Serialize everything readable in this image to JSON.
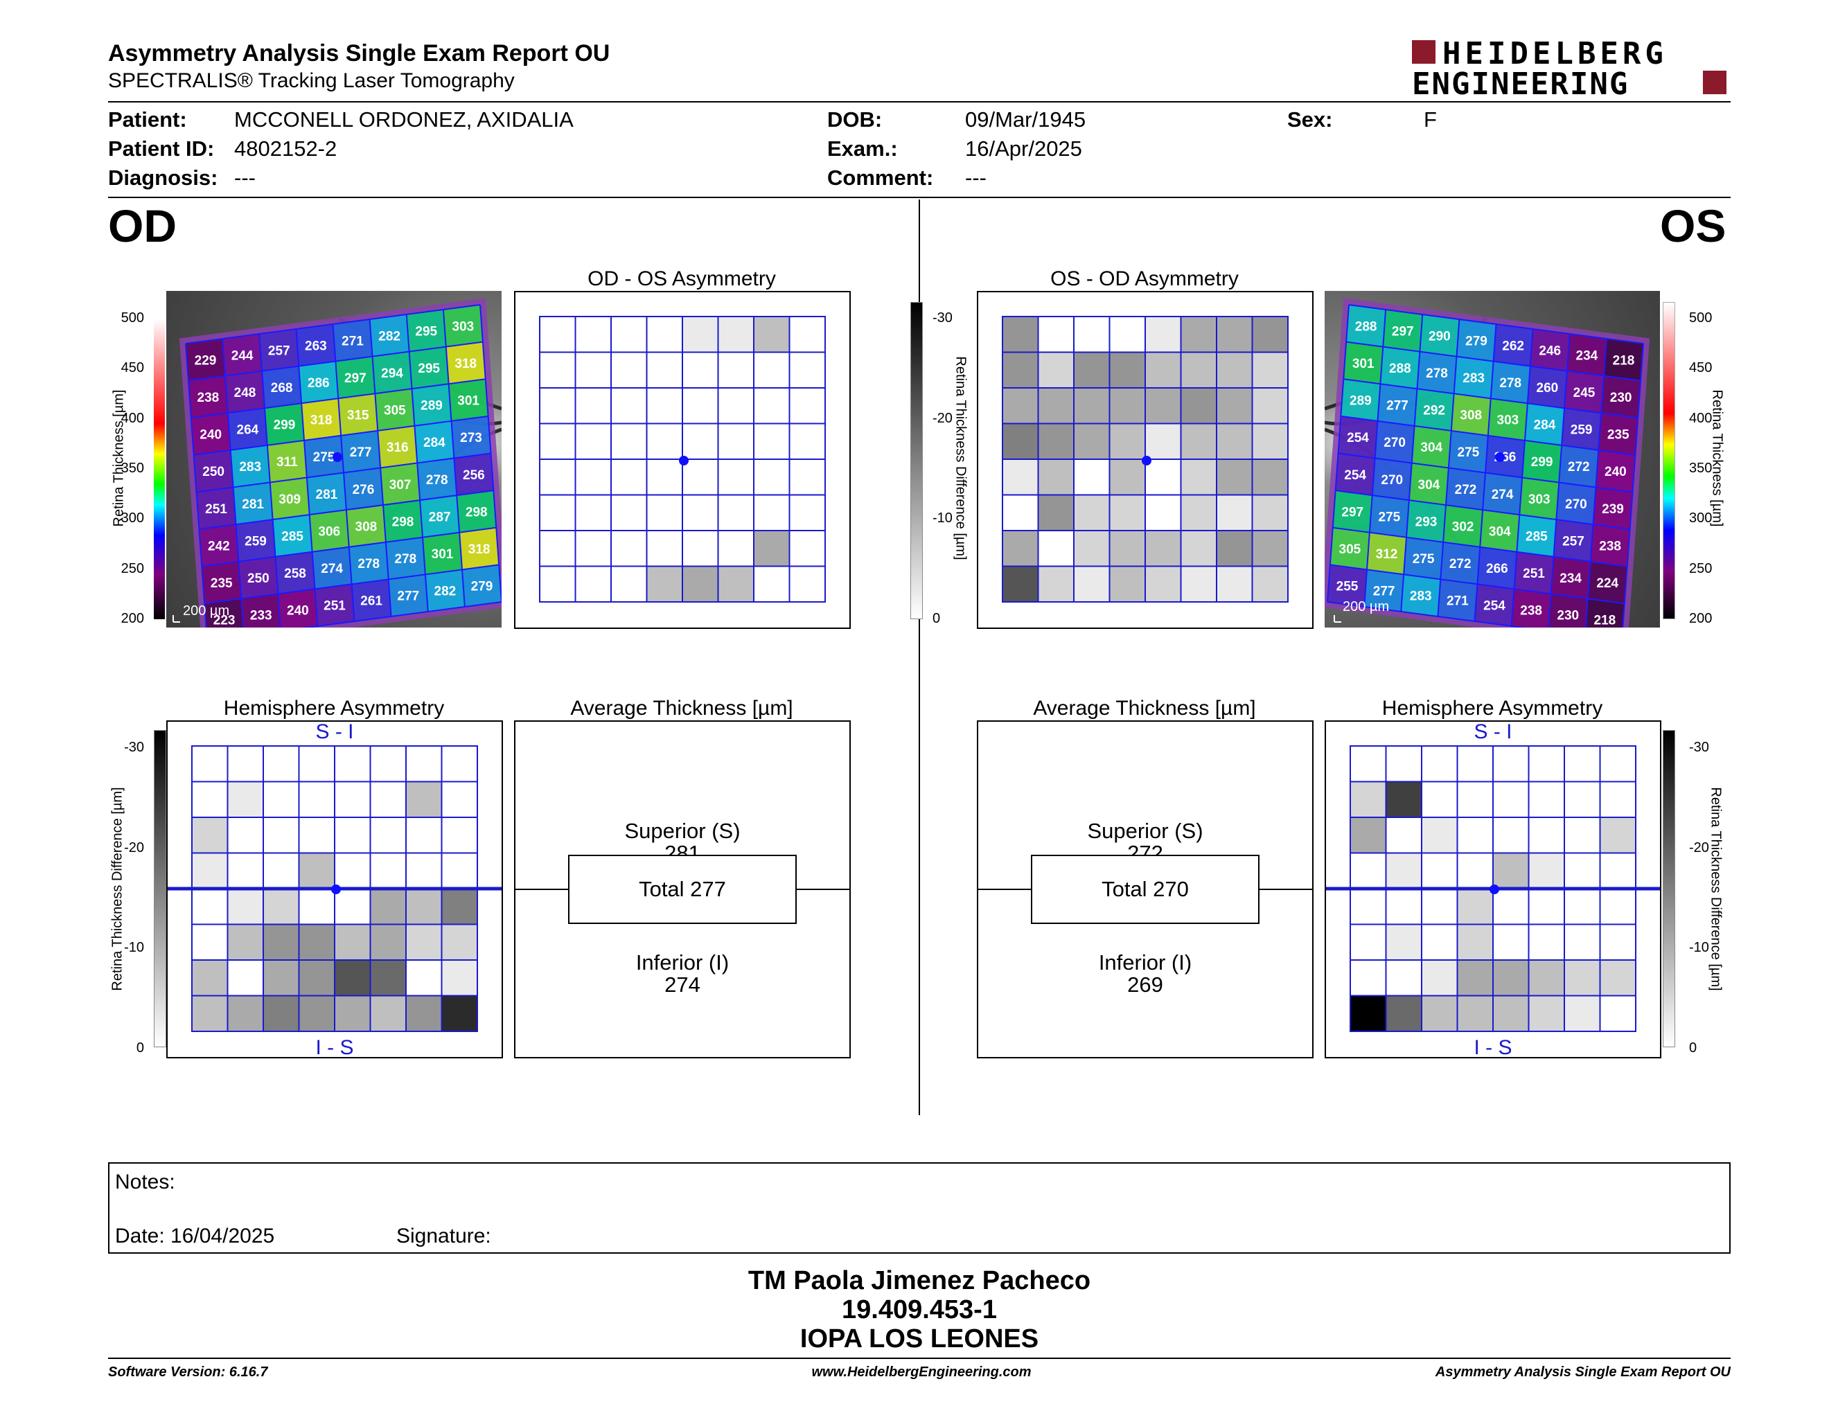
{
  "header": {
    "report_title": "Asymmetry Analysis Single Exam Report OU",
    "device": "SPECTRALIS® Tracking Laser Tomography",
    "logo_line1": "HEIDELBERG",
    "logo_line2": "ENGINEERING",
    "brand_color": "#8b1a2b"
  },
  "patient": {
    "patient_label": "Patient:",
    "patient_value": "MCCONELL ORDONEZ, AXIDALIA",
    "id_label": "Patient ID:",
    "id_value": "4802152-2",
    "diag_label": "Diagnosis:",
    "diag_value": "---",
    "dob_label": "DOB:",
    "dob_value": "09/Mar/1945",
    "exam_label": "Exam.:",
    "exam_value": "16/Apr/2025",
    "comment_label": "Comment:",
    "comment_value": "---",
    "sex_label": "Sex:",
    "sex_value": "F"
  },
  "od": {
    "label": "OD",
    "asym_title": "OD - OS Asymmetry",
    "hemi_title": "Hemisphere Asymmetry",
    "avg_title": "Average Thickness [µm]",
    "superior_label": "Superior (S)",
    "superior_value": "281",
    "total_text": "Total 277",
    "inferior_label": "Inferior (I)",
    "inferior_value": "274",
    "scale_text": "200 µm",
    "hemi_top": "S - I",
    "hemi_bottom": "I - S",
    "thickness_grid": [
      [
        229,
        244,
        257,
        263,
        271,
        282,
        295,
        303
      ],
      [
        238,
        248,
        268,
        286,
        297,
        294,
        295,
        318
      ],
      [
        240,
        264,
        299,
        318,
        315,
        305,
        289,
        301
      ],
      [
        250,
        283,
        311,
        275,
        277,
        316,
        284,
        273
      ],
      [
        251,
        281,
        309,
        281,
        276,
        307,
        278,
        256
      ],
      [
        242,
        259,
        285,
        306,
        308,
        298,
        287,
        298
      ],
      [
        235,
        250,
        258,
        274,
        278,
        278,
        301,
        318
      ],
      [
        223,
        233,
        240,
        251,
        261,
        277,
        282,
        279
      ]
    ],
    "asym_grid": [
      [
        0,
        0,
        0,
        0,
        1,
        1,
        3,
        0
      ],
      [
        0,
        0,
        0,
        0,
        0,
        0,
        0,
        0
      ],
      [
        0,
        0,
        0,
        0,
        0,
        0,
        0,
        0
      ],
      [
        0,
        0,
        0,
        0,
        0,
        0,
        0,
        0
      ],
      [
        0,
        0,
        0,
        0,
        0,
        0,
        0,
        0
      ],
      [
        0,
        0,
        0,
        0,
        0,
        0,
        0,
        0
      ],
      [
        0,
        0,
        0,
        0,
        0,
        0,
        4,
        0
      ],
      [
        0,
        0,
        0,
        3,
        4,
        3,
        0,
        0
      ]
    ],
    "hemi_grid": [
      [
        0,
        0,
        0,
        0,
        0,
        0,
        0,
        0
      ],
      [
        0,
        1,
        0,
        0,
        0,
        0,
        3,
        0
      ],
      [
        2,
        0,
        0,
        0,
        0,
        0,
        0,
        0
      ],
      [
        1,
        0,
        0,
        3,
        0,
        0,
        0,
        0
      ],
      [
        0,
        1,
        2,
        0,
        0,
        4,
        3,
        6
      ],
      [
        0,
        3,
        5,
        5,
        3,
        4,
        2,
        2
      ],
      [
        3,
        0,
        4,
        5,
        8,
        7,
        0,
        1
      ],
      [
        3,
        4,
        6,
        5,
        4,
        3,
        5,
        10
      ]
    ]
  },
  "os": {
    "label": "OS",
    "asym_title": "OS - OD Asymmetry",
    "hemi_title": "Hemisphere Asymmetry",
    "avg_title": "Average Thickness [µm]",
    "superior_label": "Superior (S)",
    "superior_value": "272",
    "total_text": "Total 270",
    "inferior_label": "Inferior (I)",
    "inferior_value": "269",
    "scale_text": "200 µm",
    "hemi_top": "S - I",
    "hemi_bottom": "I - S",
    "thickness_grid": [
      [
        288,
        297,
        290,
        279,
        262,
        246,
        234,
        218
      ],
      [
        301,
        288,
        278,
        283,
        278,
        260,
        245,
        230
      ],
      [
        289,
        277,
        292,
        308,
        303,
        284,
        259,
        235
      ],
      [
        254,
        270,
        304,
        275,
        266,
        299,
        272,
        240
      ],
      [
        254,
        270,
        304,
        272,
        274,
        303,
        270,
        239
      ],
      [
        297,
        275,
        293,
        302,
        304,
        285,
        257,
        238
      ],
      [
        305,
        312,
        275,
        272,
        266,
        251,
        234,
        224
      ],
      [
        255,
        277,
        283,
        271,
        254,
        238,
        230,
        218
      ]
    ],
    "asym_grid": [
      [
        5,
        0,
        0,
        0,
        1,
        4,
        4,
        5
      ],
      [
        5,
        2,
        5,
        5,
        3,
        3,
        3,
        2
      ],
      [
        4,
        4,
        4,
        4,
        4,
        5,
        4,
        2
      ],
      [
        6,
        5,
        4,
        3,
        1,
        3,
        3,
        2
      ],
      [
        1,
        3,
        0,
        3,
        0,
        2,
        4,
        4
      ],
      [
        0,
        5,
        2,
        2,
        0,
        2,
        1,
        2
      ],
      [
        4,
        0,
        2,
        3,
        3,
        2,
        5,
        4
      ],
      [
        8,
        2,
        1,
        3,
        2,
        1,
        1,
        2
      ]
    ],
    "hemi_grid": [
      [
        0,
        0,
        0,
        0,
        0,
        0,
        0,
        0
      ],
      [
        2,
        9,
        0,
        0,
        0,
        0,
        0,
        0
      ],
      [
        4,
        0,
        1,
        0,
        0,
        0,
        0,
        2
      ],
      [
        0,
        1,
        0,
        0,
        3,
        1,
        0,
        0
      ],
      [
        0,
        0,
        0,
        2,
        0,
        0,
        0,
        0
      ],
      [
        0,
        1,
        0,
        2,
        0,
        0,
        0,
        0
      ],
      [
        0,
        0,
        1,
        4,
        4,
        3,
        2,
        2
      ],
      [
        12,
        7,
        3,
        3,
        3,
        2,
        1,
        0
      ]
    ]
  },
  "axes": {
    "thickness_label": "Retina Thickness [µm]",
    "thickness_ticks": [
      "500",
      "450",
      "400",
      "350",
      "300",
      "250",
      "200"
    ],
    "diff_label": "Retina Thickness Difference [µm]",
    "diff_ticks": [
      "-30",
      "-20",
      "-10",
      "0"
    ]
  },
  "notes": {
    "notes_label": "Notes:",
    "date_label": "Date: 16/04/2025",
    "signature_label": "Signature:"
  },
  "stamp": {
    "line1": "TM Paola Jimenez Pacheco",
    "line2": "19.409.453-1",
    "line3": "IOPA LOS LEONES"
  },
  "footer": {
    "software": "Software Version: 6.16.7",
    "website": "www.HeidelbergEngineering.com",
    "report": "Asymmetry Analysis Single Exam Report OU"
  }
}
